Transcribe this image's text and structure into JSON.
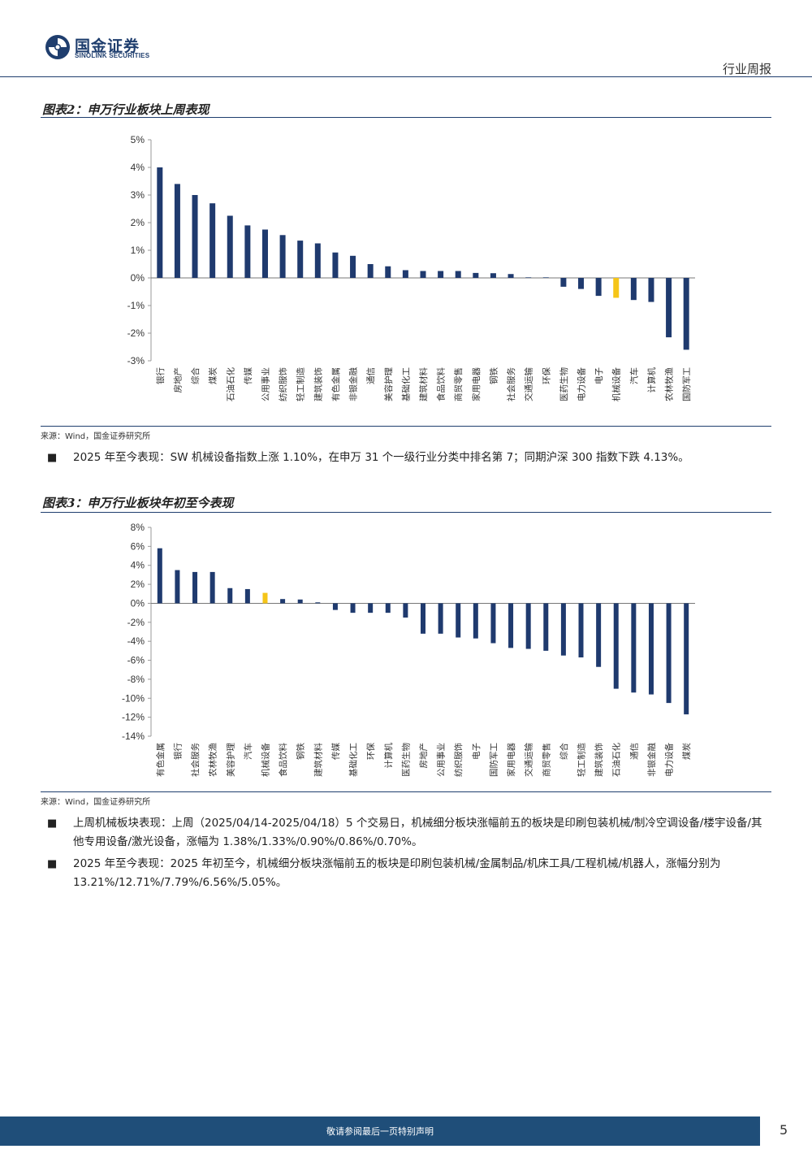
{
  "header": {
    "logo_cn": "国金证券",
    "logo_en": "SINOLINK SECURITIES",
    "doc_type": "行业周报"
  },
  "colors": {
    "navy": "#1f3a6e",
    "highlight": "#f5c518",
    "rule": "#1f3e6e"
  },
  "figure2": {
    "title": "图表2：申万行业板块上周表现",
    "source": "来源：Wind，国金证券研究所"
  },
  "bullet1": {
    "text": "2025 年至今表现：SW 机械设备指数上涨 1.10%，在申万 31 个一级行业分类中排名第 7；同期沪深 300 指数下跌 4.13%。"
  },
  "figure3": {
    "title": "图表3：申万行业板块年初至今表现",
    "source": "来源：Wind，国金证券研究所"
  },
  "bullet2": {
    "text": "上周机械板块表现：上周（2025/04/14-2025/04/18）5 个交易日，机械细分板块涨幅前五的板块是印刷包装机械/制冷空调设备/楼宇设备/其他专用设备/激光设备，涨幅为 1.38%/1.33%/0.90%/0.86%/0.70%。"
  },
  "bullet3": {
    "text": "2025 年至今表现：2025 年初至今，机械细分板块涨幅前五的板块是印刷包装机械/金属制品/机床工具/工程机械/机器人，涨幅分别为 13.21%/12.71%/7.79%/6.56%/5.05%。"
  },
  "footer": {
    "disclaimer": "敬请参阅最后一页特别声明",
    "page": "5"
  },
  "chart_data": [
    {
      "type": "bar",
      "title": "",
      "unit": "%",
      "ylim": [
        -3,
        5
      ],
      "yticks": [
        5,
        4,
        3,
        2,
        1,
        0,
        -1,
        -2,
        -3
      ],
      "highlight": "机械设备",
      "grid": false,
      "categories": [
        "银行",
        "房地产",
        "综合",
        "煤炭",
        "石油石化",
        "传媒",
        "公用事业",
        "纺织服饰",
        "轻工制造",
        "建筑装饰",
        "有色金属",
        "非银金融",
        "通信",
        "美容护理",
        "基础化工",
        "建筑材料",
        "食品饮料",
        "商贸零售",
        "家用电器",
        "钢铁",
        "社会服务",
        "交通运输",
        "环保",
        "医药生物",
        "电力设备",
        "电子",
        "机械设备",
        "汽车",
        "计算机",
        "农林牧渔",
        "国防军工"
      ],
      "values": [
        4.0,
        3.4,
        3.0,
        2.7,
        2.25,
        1.9,
        1.75,
        1.55,
        1.35,
        1.25,
        0.92,
        0.8,
        0.5,
        0.42,
        0.28,
        0.25,
        0.25,
        0.25,
        0.18,
        0.17,
        0.14,
        0.02,
        0.02,
        -0.32,
        -0.4,
        -0.65,
        -0.72,
        -0.8,
        -0.87,
        -2.15,
        -2.6
      ]
    },
    {
      "type": "bar",
      "title": "",
      "unit": "%",
      "ylim": [
        -14,
        8
      ],
      "yticks": [
        8,
        6,
        4,
        2,
        0,
        -2,
        -4,
        -6,
        -8,
        -10,
        -12,
        -14
      ],
      "highlight": "机械设备",
      "grid": false,
      "categories": [
        "有色金属",
        "银行",
        "社会服务",
        "农林牧渔",
        "美容护理",
        "汽车",
        "机械设备",
        "食品饮料",
        "钢铁",
        "建筑材料",
        "传媒",
        "基础化工",
        "环保",
        "计算机",
        "医药生物",
        "房地产",
        "公用事业",
        "纺织服饰",
        "电子",
        "国防军工",
        "家用电器",
        "交通运输",
        "商贸零售",
        "综合",
        "轻工制造",
        "建筑装饰",
        "石油石化",
        "通信",
        "非银金融",
        "电力设备",
        "煤炭"
      ],
      "values": [
        5.8,
        3.5,
        3.3,
        3.3,
        1.6,
        1.5,
        1.1,
        0.45,
        0.4,
        0.1,
        -0.7,
        -1.0,
        -1.0,
        -1.0,
        -1.5,
        -3.2,
        -3.2,
        -3.6,
        -3.7,
        -4.2,
        -4.7,
        -4.8,
        -5.0,
        -5.5,
        -5.7,
        -6.7,
        -9.0,
        -9.4,
        -9.6,
        -10.5,
        -11.7
      ]
    }
  ]
}
